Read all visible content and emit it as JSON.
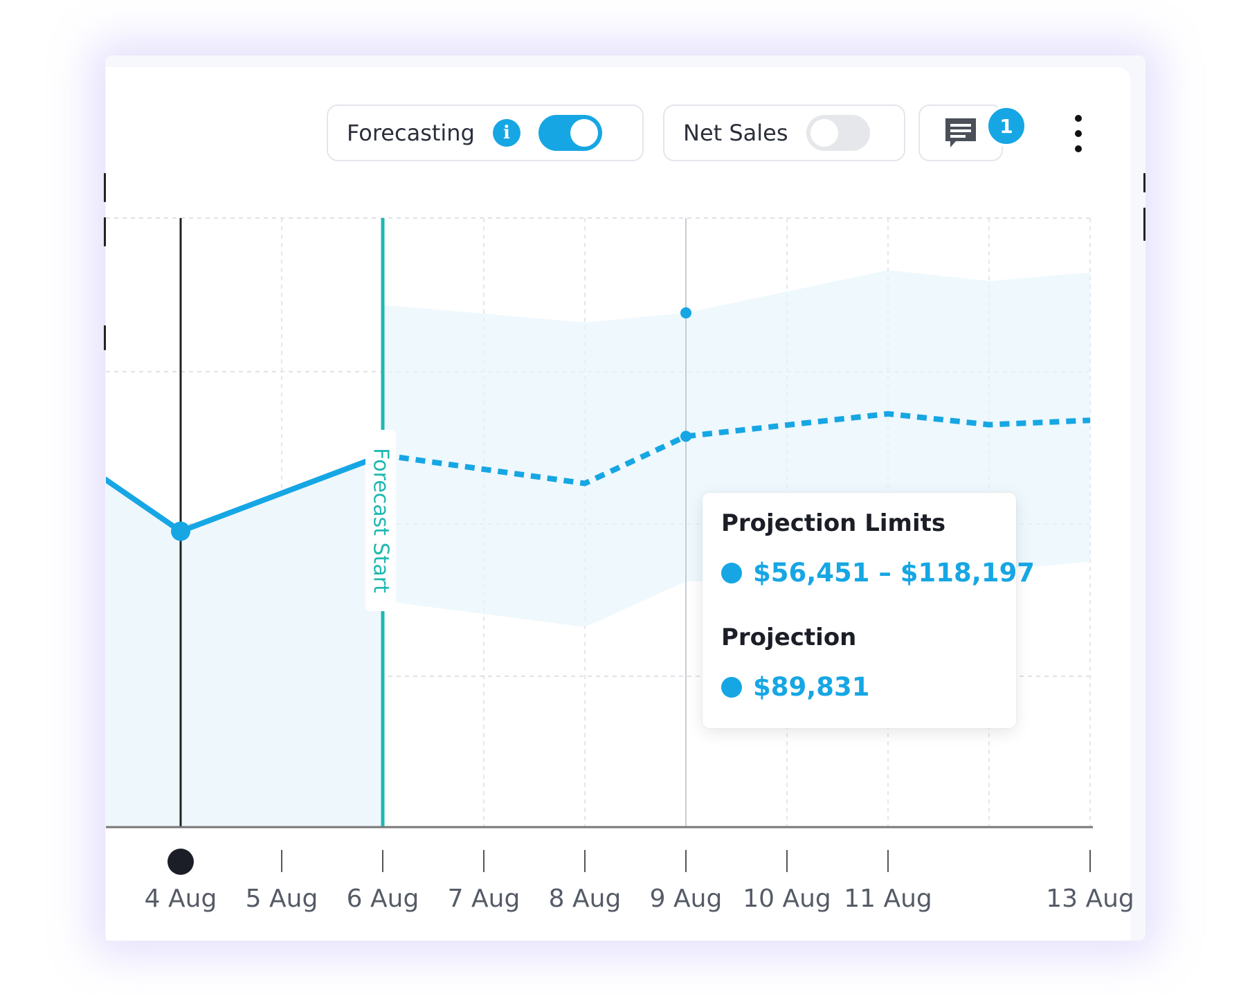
{
  "toolbar": {
    "forecasting_label": "Forecasting",
    "forecasting_on": true,
    "net_sales_label": "Net Sales",
    "net_sales_on": false,
    "comments_count": "1",
    "icons": {
      "info": "info-icon",
      "comment": "comment-icon",
      "more": "more-vertical-icon"
    }
  },
  "colors": {
    "accent": "#16a6e4",
    "forecast_line": "#1fb8b0",
    "band": "#e7f5fc",
    "axis": "#555b66"
  },
  "chart_data": {
    "type": "line",
    "x_labels": [
      "4 Aug",
      "5 Aug",
      "6 Aug",
      "7 Aug",
      "8 Aug",
      "9 Aug",
      "10 Aug",
      "11 Aug",
      "13 Aug"
    ],
    "selected_date": "4 Aug",
    "forecast_start_label": "Forecast Start",
    "forecast_start_date": "6 Aug",
    "hover_date": "9 Aug",
    "actual": {
      "x": [
        "3 Aug",
        "4 Aug",
        "6 Aug"
      ],
      "y": [
        84000,
        68000,
        85500
      ]
    },
    "projection": {
      "x": [
        "6 Aug",
        "8 Aug",
        "9 Aug",
        "11 Aug",
        "12 Aug",
        "13 Aug"
      ],
      "y": [
        85500,
        79000,
        89831,
        95000,
        92500,
        93500
      ]
    },
    "projection_limits": {
      "x": [
        "6 Aug",
        "8 Aug",
        "9 Aug",
        "11 Aug",
        "12 Aug",
        "13 Aug"
      ],
      "lower": [
        52000,
        46000,
        56451,
        57500,
        59000,
        61000
      ],
      "upper": [
        120000,
        116000,
        118197,
        128000,
        125500,
        127500
      ]
    },
    "grid": true,
    "legend": "none"
  },
  "tooltip": {
    "limits_title": "Projection Limits",
    "limits_value": "$56,451 – $118,197",
    "projection_title": "Projection",
    "projection_value": "$89,831"
  }
}
